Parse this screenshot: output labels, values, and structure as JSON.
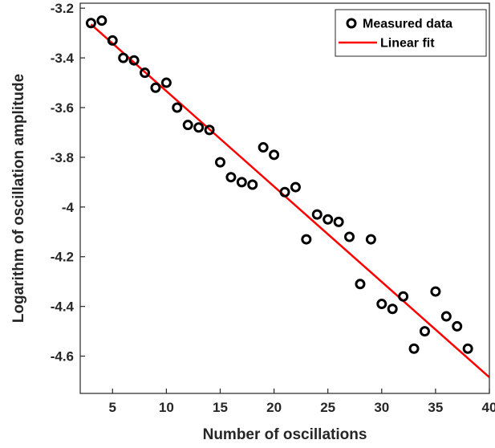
{
  "chart_data": {
    "type": "scatter",
    "xlabel": "Number of oscillations",
    "ylabel": "Logarithm of oscillation amplitude",
    "xlim": [
      2,
      40
    ],
    "ylim": [
      -4.75,
      -3.18
    ],
    "x_ticks": [
      5,
      10,
      15,
      20,
      25,
      30,
      35,
      40
    ],
    "y_ticks": [
      -3.2,
      -3.4,
      -3.6,
      -3.8,
      -4,
      -4.2,
      -4.4,
      -4.6
    ],
    "grid": false,
    "legend_position": "top-right",
    "series": [
      {
        "name": "Measured data",
        "type": "scatter",
        "color": "#000000",
        "x": [
          3,
          4,
          5,
          6,
          7,
          8,
          9,
          10,
          11,
          12,
          13,
          14,
          15,
          16,
          17,
          18,
          19,
          20,
          21,
          22,
          23,
          24,
          25,
          26,
          27,
          28,
          29,
          30,
          31,
          32,
          33,
          34,
          35,
          36,
          37,
          38
        ],
        "y": [
          -3.26,
          -3.25,
          -3.33,
          -3.4,
          -3.41,
          -3.46,
          -3.52,
          -3.5,
          -3.6,
          -3.67,
          -3.68,
          -3.69,
          -3.82,
          -3.88,
          -3.9,
          -3.91,
          -3.76,
          -3.79,
          -3.94,
          -3.92,
          -4.13,
          -4.03,
          -4.05,
          -4.06,
          -4.12,
          -4.31,
          -4.13,
          -4.39,
          -4.41,
          -4.36,
          -4.57,
          -4.5,
          -4.34,
          -4.44,
          -4.48,
          -4.57
        ]
      },
      {
        "name": "Linear fit",
        "type": "line",
        "color": "#ff0000",
        "x": [
          3,
          40
        ],
        "y": [
          -3.265,
          -4.685
        ]
      }
    ]
  }
}
